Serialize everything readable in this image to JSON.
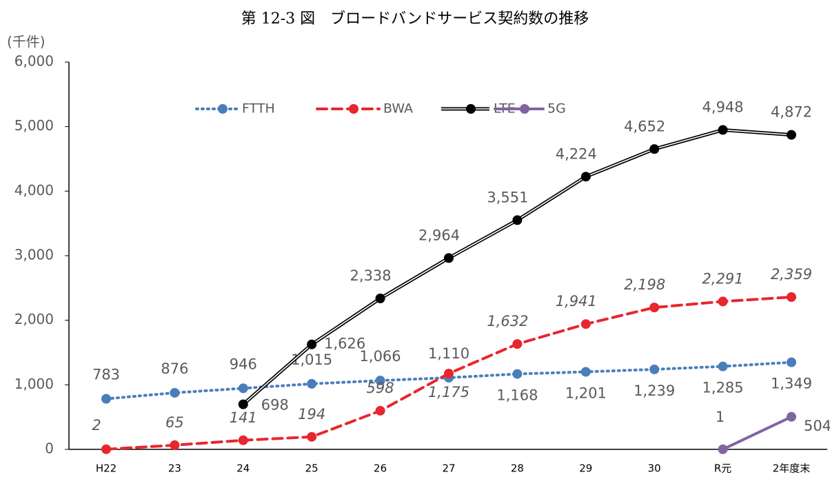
{
  "chart_data": {
    "type": "line",
    "title": "第 12-3 図　ブロードバンドサービス契約数の推移",
    "y_label": "(千件)",
    "categories": [
      "H22",
      "23",
      "24",
      "25",
      "26",
      "27",
      "28",
      "29",
      "30",
      "R元",
      "2年度末"
    ],
    "ylim": [
      0,
      6000
    ],
    "yticks": [
      0,
      {
        "value": 1000,
        "label": "1,000"
      },
      {
        "value": 2000,
        "label": "2,000"
      },
      {
        "value": 3000,
        "label": "3,000"
      },
      {
        "value": 4000,
        "label": "4,000"
      },
      {
        "value": 5000,
        "label": "5,000"
      },
      {
        "value": 6000,
        "label": "6,000"
      }
    ],
    "grid": false,
    "legend": "top",
    "series": [
      {
        "name": "FTTH",
        "color": "#4a7ebb",
        "style": "dotted",
        "values": [
          783,
          876,
          946,
          1015,
          1066,
          1110,
          1168,
          1201,
          1239,
          1285,
          1349
        ],
        "value_labels": [
          "783",
          "876",
          "946",
          "1,015",
          "1,066",
          "1,110",
          "1,168",
          "1,201",
          "1,239",
          "1,285",
          "1,349"
        ]
      },
      {
        "name": "BWA",
        "color": "#e8262e",
        "style": "dashed",
        "values": [
          2,
          65,
          141,
          194,
          598,
          1175,
          1632,
          1941,
          2198,
          2291,
          2359
        ],
        "value_labels": [
          "2",
          "65",
          "141",
          "194",
          "598",
          "1,175",
          "1,632",
          "1,941",
          "2,198",
          "2,291",
          "2,359"
        ]
      },
      {
        "name": "LTE",
        "color": "#000000",
        "style": "double",
        "values": [
          null,
          null,
          698,
          1626,
          2338,
          2964,
          3551,
          4224,
          4652,
          4948,
          4872
        ],
        "value_labels": [
          null,
          null,
          "698",
          "1,626",
          "2,338",
          "2,964",
          "3,551",
          "4,224",
          "4,652",
          "4,948",
          "4,872"
        ]
      },
      {
        "name": "5G",
        "color": "#8064a2",
        "style": "solid",
        "values": [
          null,
          null,
          null,
          null,
          null,
          null,
          null,
          null,
          null,
          1,
          504
        ],
        "value_labels": [
          null,
          null,
          null,
          null,
          null,
          null,
          null,
          null,
          null,
          "1",
          "504"
        ]
      }
    ]
  }
}
